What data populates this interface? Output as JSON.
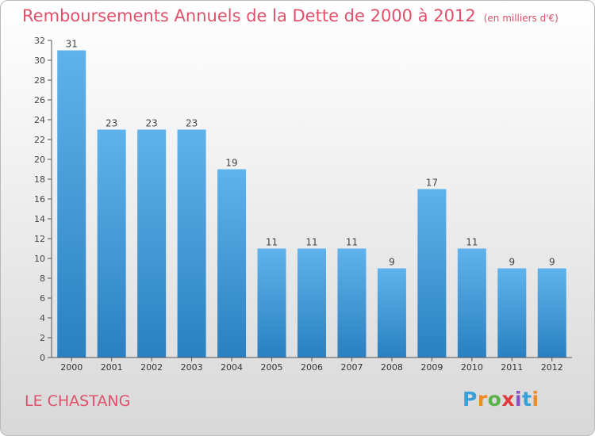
{
  "title": "Remboursements Annuels de la Dette de 2000 à 2012",
  "unit_note": "(en milliers d'€)",
  "town": "LE CHASTANG",
  "logo": {
    "text": "Proxiti",
    "colors": [
      "#3aa0d8",
      "#f08a24",
      "#5bb24a",
      "#e23a3a",
      "#8a4fc6",
      "#3aa0d8",
      "#f08a24"
    ]
  },
  "colors": {
    "title": "#e0506a",
    "bar_top": "#5fb3ec",
    "bar_bottom": "#2a80c0",
    "axis": "#555555"
  },
  "chart_data": {
    "type": "bar",
    "categories": [
      "2000",
      "2001",
      "2002",
      "2003",
      "2004",
      "2005",
      "2006",
      "2007",
      "2008",
      "2009",
      "2010",
      "2011",
      "2012"
    ],
    "values": [
      31,
      23,
      23,
      23,
      19,
      11,
      11,
      11,
      9,
      17,
      11,
      9,
      9
    ],
    "ylim": [
      0,
      32
    ],
    "ytick_step": 2,
    "grid": false,
    "data_labels": true
  }
}
